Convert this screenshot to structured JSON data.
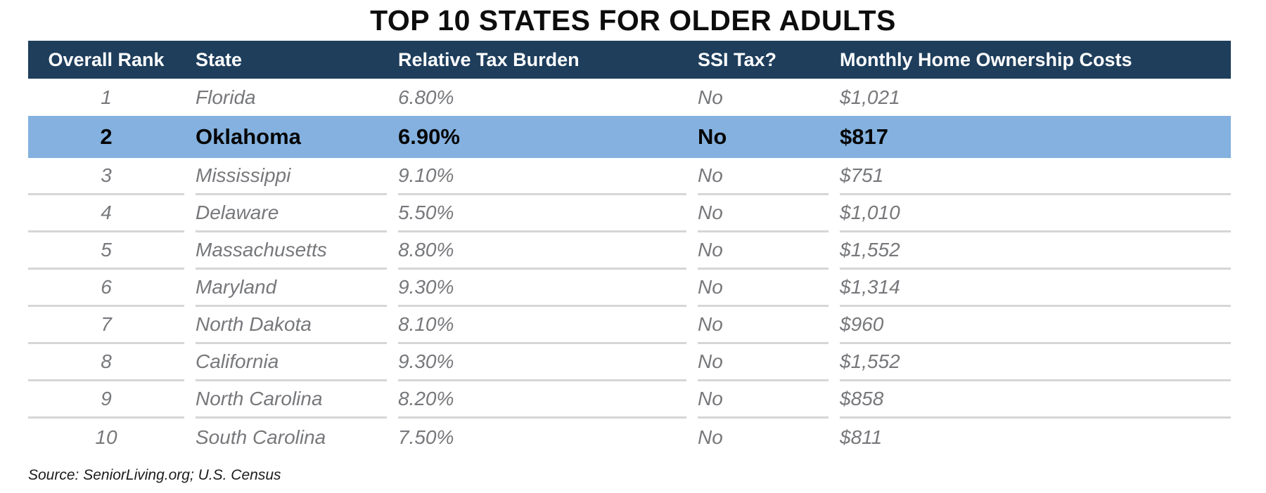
{
  "title": "TOP 10 STATES FOR OLDER ADULTS",
  "source": "Source: SeniorLiving.org; U.S. Census",
  "colors": {
    "header_bg": "#1e3e5c",
    "header_text": "#ffffff",
    "highlight_bg": "#84b1df",
    "highlight_text": "#050505",
    "row_text": "#77787b",
    "divider": "#d6d6d6"
  },
  "chart_data": {
    "type": "table",
    "title": "TOP 10 STATES FOR OLDER ADULTS",
    "columns": [
      "Overall Rank",
      "State",
      "Relative Tax Burden",
      "SSI Tax?",
      "Monthly Home Ownership Costs"
    ],
    "rows": [
      [
        "1",
        "Florida",
        "6.80%",
        "No",
        "$1,021"
      ],
      [
        "2",
        "Oklahoma",
        "6.90%",
        "No",
        "$817"
      ],
      [
        "3",
        "Mississippi",
        "9.10%",
        "No",
        "$751"
      ],
      [
        "4",
        "Delaware",
        "5.50%",
        "No",
        "$1,010"
      ],
      [
        "5",
        "Massachusetts",
        "8.80%",
        "No",
        "$1,552"
      ],
      [
        "6",
        "Maryland",
        "9.30%",
        "No",
        "$1,314"
      ],
      [
        "7",
        "North Dakota",
        "8.10%",
        "No",
        "$960"
      ],
      [
        "8",
        "California",
        "9.30%",
        "No",
        "$1,552"
      ],
      [
        "9",
        "North Carolina",
        "8.20%",
        "No",
        "$858"
      ],
      [
        "10",
        "South Carolina",
        "7.50%",
        "No",
        "$811"
      ]
    ],
    "highlighted_row": {
      "index": 1,
      "state": "Oklahoma"
    },
    "layout": {
      "grid": "off",
      "header_style": "dark-navy-band",
      "body_style": "gray-italic",
      "highlight_style": "light-blue-band-bold"
    }
  }
}
